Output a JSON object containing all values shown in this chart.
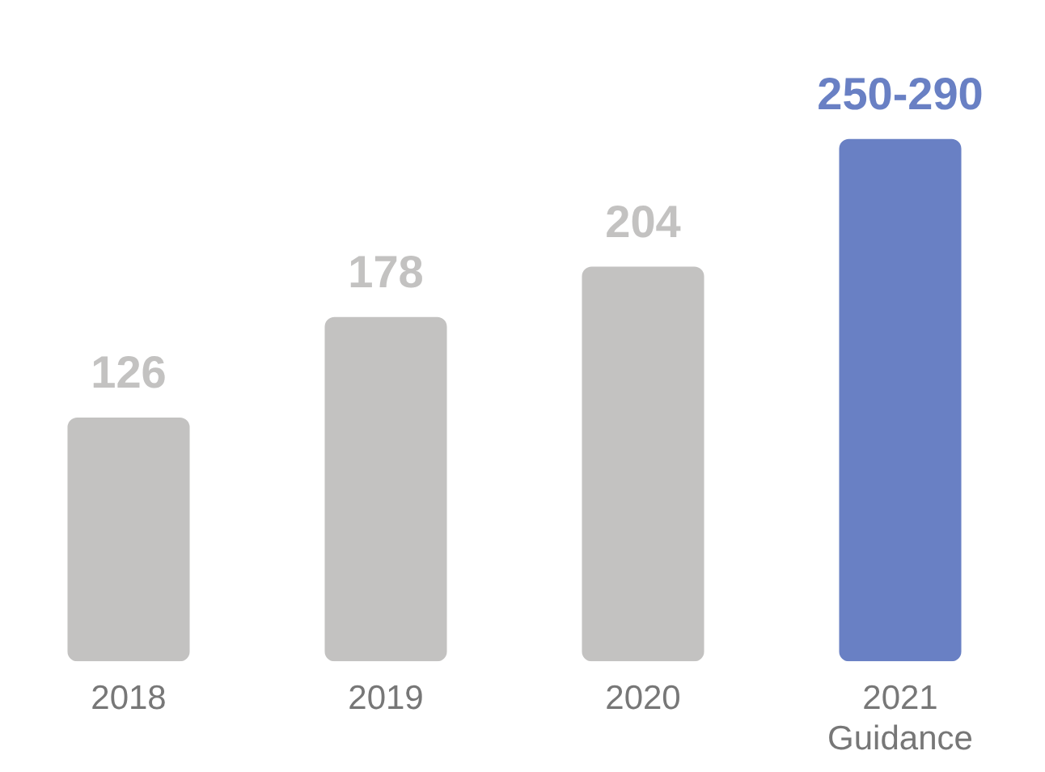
{
  "chart_data": {
    "type": "bar",
    "categories": [
      "2018",
      "2019",
      "2020",
      "2021\nGuidance"
    ],
    "values": [
      126,
      178,
      204,
      270
    ],
    "colors": [
      "#c3c2c1",
      "#c3c2c1",
      "#c3c2c1",
      "#6980c4"
    ],
    "value_labels": [
      "126",
      "178",
      "204",
      "250-290"
    ]
  }
}
